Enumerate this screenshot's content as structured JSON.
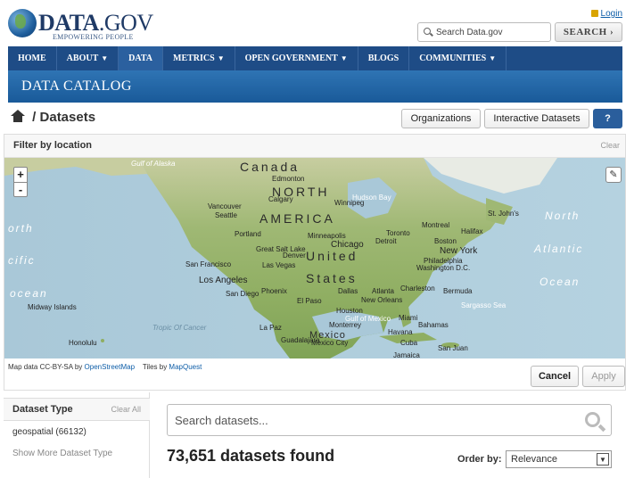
{
  "header": {
    "logo_text": "DATA",
    "logo_suffix": ".GOV",
    "tagline": "EMPOWERING PEOPLE",
    "login": "Login",
    "search_placeholder": "Search Data.gov",
    "search_button": "SEARCH ›"
  },
  "nav": {
    "items": [
      {
        "label": "HOME",
        "caret": ""
      },
      {
        "label": "ABOUT",
        "caret": "▼"
      },
      {
        "label": "DATA",
        "caret": ""
      },
      {
        "label": "METRICS",
        "caret": "▼"
      },
      {
        "label": "OPEN GOVERNMENT",
        "caret": "▼"
      },
      {
        "label": "BLOGS",
        "caret": ""
      },
      {
        "label": "COMMUNITIES",
        "caret": "▼"
      }
    ]
  },
  "banner": {
    "title": "DATA CATALOG"
  },
  "breadcrumb": {
    "separator": "/",
    "current": "Datasets"
  },
  "actions": {
    "organizations": "Organizations",
    "interactive": "Interactive Datasets",
    "help": "?"
  },
  "filter": {
    "title": "Filter by location",
    "clear": "Clear",
    "zoom_in": "+",
    "zoom_out": "-",
    "edit": "✎",
    "cancel": "Cancel",
    "apply": "Apply",
    "attribution_prefix": "Map data CC-BY-SA by",
    "osm": "OpenStreetMap",
    "tiles_prefix": "Tiles by",
    "mapquest": "MapQuest"
  },
  "map_labels": {
    "canada": "Canada",
    "north": "NORTH",
    "america": "AMERICA",
    "united": "United",
    "states": "States",
    "mexico": "Mexico",
    "gulf_alaska": "Gulf of\nAlaska",
    "ocean_north_left": "orth",
    "ocean_north_right": "North",
    "atlantic": "Atlantic",
    "ocean_right": "Ocean",
    "pacific_left": "cific",
    "ocean_left": "ocean",
    "tropic": "Tropic Of Cancer",
    "cities": [
      "Edmonton",
      "Calgary",
      "Vancouver",
      "Seattle",
      "Portland",
      "Winnipeg",
      "Minneapolis",
      "Chicago",
      "Detroit",
      "Toronto",
      "Montreal",
      "Boston",
      "Halifax",
      "St. John's",
      "New York",
      "Philadelphia",
      "Washington D.C.",
      "San Francisco",
      "Las Vegas",
      "Denver",
      "Los Angeles",
      "San Diego",
      "Phoenix",
      "El Paso",
      "Dallas",
      "Houston",
      "Atlanta",
      "Charleston",
      "New Orleans",
      "Bermuda",
      "Miami",
      "Havana",
      "Cuba",
      "Bahamas",
      "Monterrey",
      "Guadalajara",
      "Mexico City",
      "La Paz",
      "Honolulu",
      "Midway Islands",
      "Jamaica",
      "San Juan",
      "Sargasso Sea",
      "Gulf of Mexico",
      "Great Salt Lake",
      "Hudson Bay"
    ]
  },
  "sidebar": {
    "title": "Dataset Type",
    "clear": "Clear All",
    "facet": "geospatial (66132)",
    "more": "Show More Dataset Type"
  },
  "results": {
    "search_placeholder": "Search datasets...",
    "count_text": "73,651 datasets found",
    "order_label": "Order by:",
    "order_value": "Relevance"
  }
}
